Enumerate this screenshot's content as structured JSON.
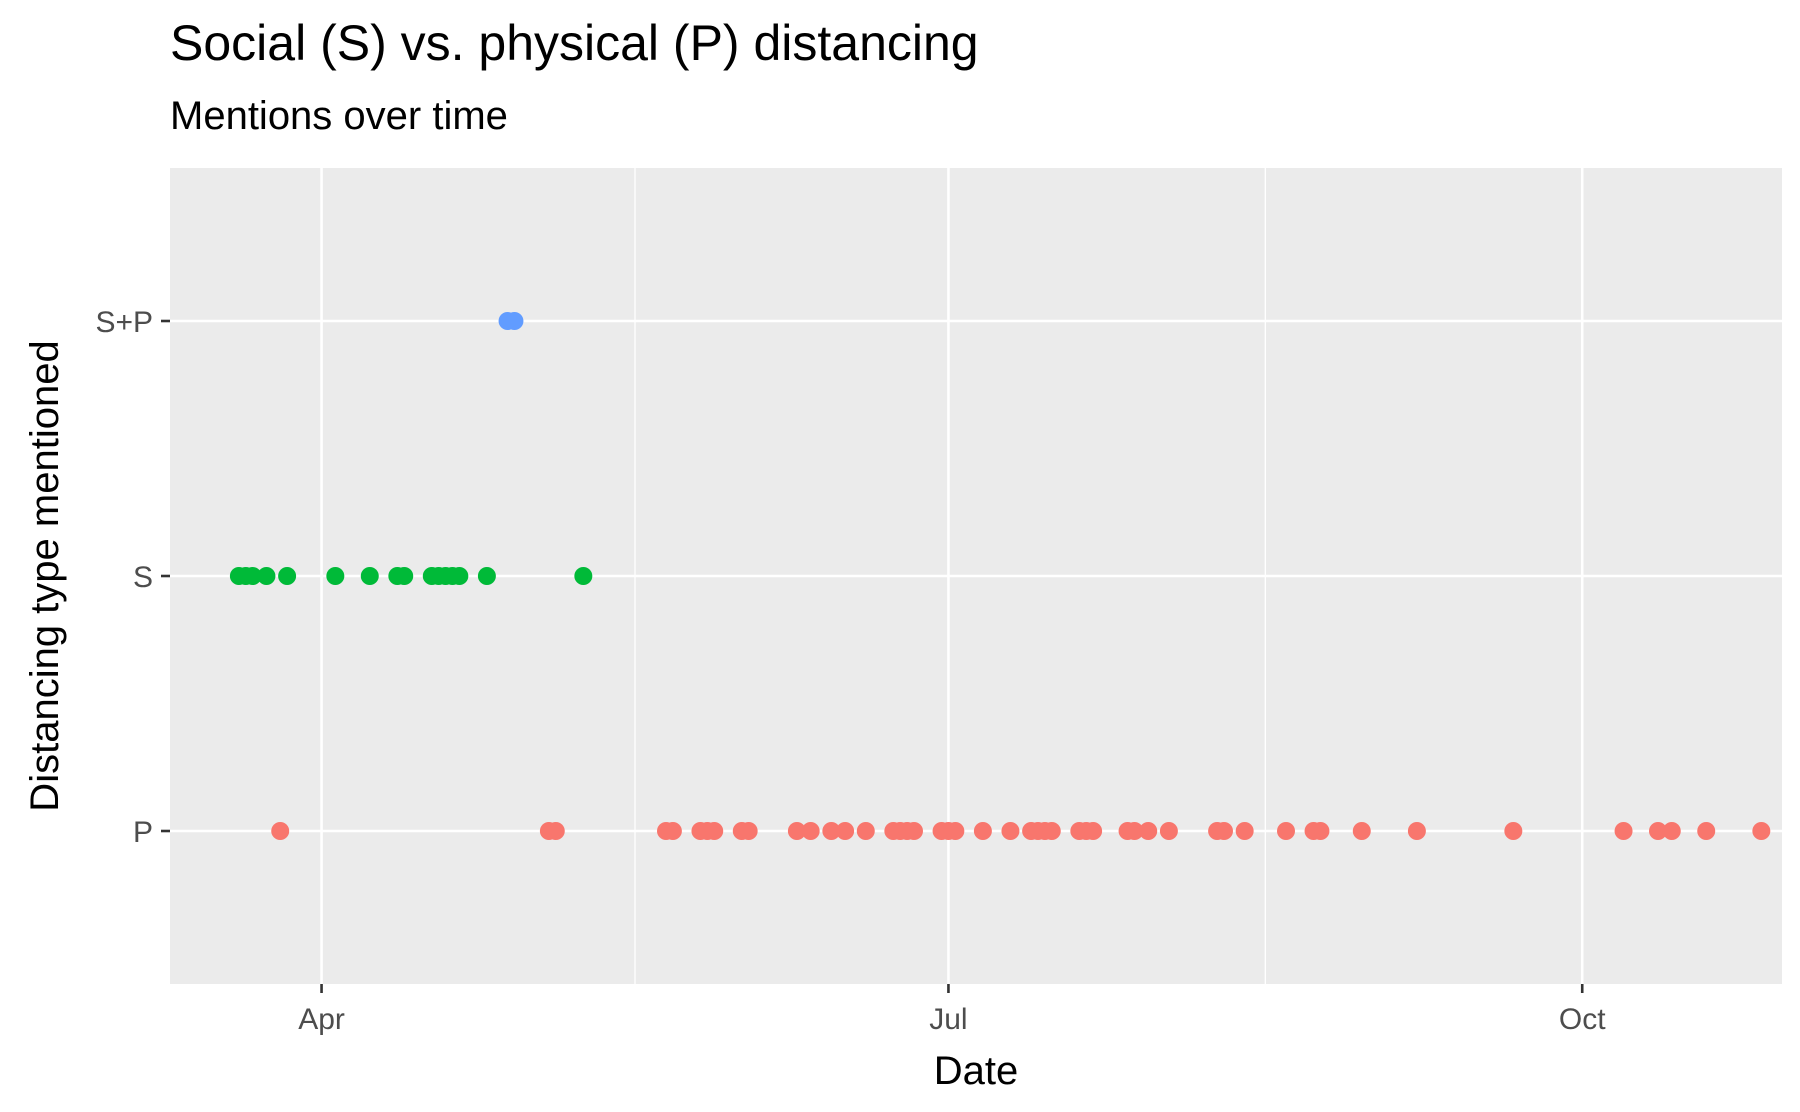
{
  "chart_data": {
    "type": "scatter",
    "title": "Social (S) vs. physical (P) distancing",
    "subtitle": "Mentions over time",
    "xlabel": "Date",
    "ylabel": "Distancing type mentioned",
    "x_ticks": [
      "Apr",
      "Jul",
      "Oct"
    ],
    "x_tick_dates": [
      "2020-04-01",
      "2020-07-01",
      "2020-10-01"
    ],
    "xlim": [
      "2020-03-10",
      "2020-10-30"
    ],
    "y_categories": [
      "P",
      "S",
      "S+P"
    ],
    "grid": true,
    "legend": "none",
    "series": [
      {
        "category": "P",
        "color": "#F8766D",
        "x": [
          "2020-03-26",
          "2020-05-04",
          "2020-05-05",
          "2020-05-21",
          "2020-05-22",
          "2020-05-26",
          "2020-05-27",
          "2020-05-28",
          "2020-06-01",
          "2020-06-02",
          "2020-06-09",
          "2020-06-11",
          "2020-06-14",
          "2020-06-16",
          "2020-06-19",
          "2020-06-23",
          "2020-06-24",
          "2020-06-25",
          "2020-06-26",
          "2020-06-30",
          "2020-07-01",
          "2020-07-02",
          "2020-07-06",
          "2020-07-10",
          "2020-07-13",
          "2020-07-14",
          "2020-07-15",
          "2020-07-16",
          "2020-07-20",
          "2020-07-21",
          "2020-07-22",
          "2020-07-27",
          "2020-07-28",
          "2020-07-30",
          "2020-08-02",
          "2020-08-09",
          "2020-08-10",
          "2020-08-13",
          "2020-08-19",
          "2020-08-23",
          "2020-08-24",
          "2020-08-30",
          "2020-09-07",
          "2020-09-21",
          "2020-10-07",
          "2020-10-12",
          "2020-10-14",
          "2020-10-19",
          "2020-10-27"
        ]
      },
      {
        "category": "S",
        "color": "#00BA38",
        "x": [
          "2020-03-20",
          "2020-03-21",
          "2020-03-22",
          "2020-03-24",
          "2020-03-27",
          "2020-04-03",
          "2020-04-08",
          "2020-04-12",
          "2020-04-13",
          "2020-04-17",
          "2020-04-18",
          "2020-04-19",
          "2020-04-20",
          "2020-04-21",
          "2020-04-25",
          "2020-05-09"
        ]
      },
      {
        "category": "S+P",
        "color": "#619CFF",
        "x": [
          "2020-04-28",
          "2020-04-29"
        ]
      }
    ]
  }
}
